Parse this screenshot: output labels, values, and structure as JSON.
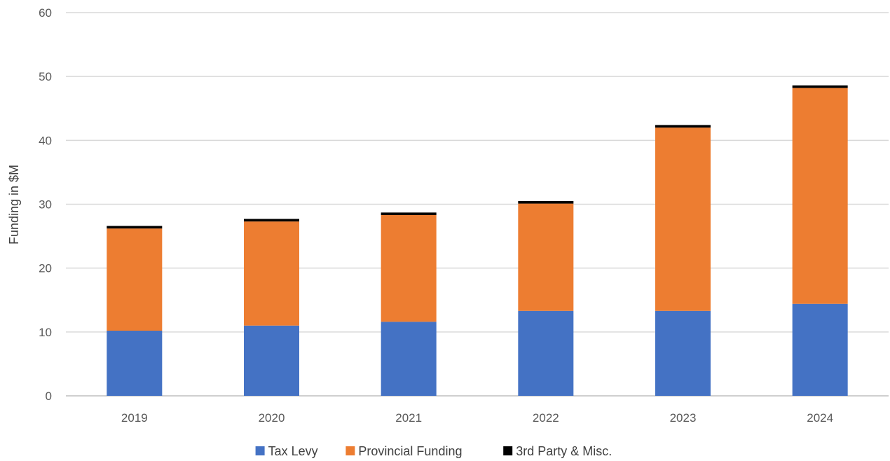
{
  "chart_data": {
    "type": "bar",
    "stacked": true,
    "title": "",
    "xlabel": "",
    "ylabel": "Funding in $M",
    "ylim": [
      0,
      60
    ],
    "yticks": [
      0,
      10,
      20,
      30,
      40,
      50,
      60
    ],
    "grid": true,
    "legend_position": "bottom",
    "categories": [
      "2019",
      "2020",
      "2021",
      "2022",
      "2023",
      "2024"
    ],
    "series": [
      {
        "name": "Tax Levy",
        "color": "#4472C4",
        "values": [
          10.2,
          11.0,
          11.6,
          13.3,
          13.3,
          14.4
        ]
      },
      {
        "name": "Provincial Funding",
        "color": "#ED7D31",
        "values": [
          16.0,
          16.3,
          16.7,
          16.8,
          28.7,
          33.8
        ]
      },
      {
        "name": "3rd Party & Misc.",
        "color": "#000000",
        "values": [
          0.4,
          0.4,
          0.4,
          0.4,
          0.4,
          0.4
        ]
      }
    ]
  }
}
